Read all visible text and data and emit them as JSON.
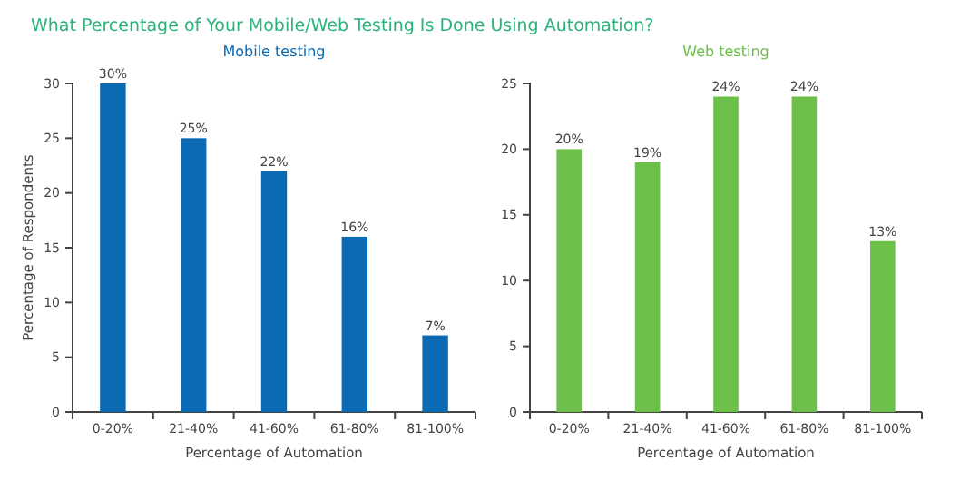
{
  "chart_data": [
    {
      "type": "bar",
      "title": "What Percentage of Your Mobile/Web Testing Is Done Using Automation?",
      "subtitle": "Mobile testing",
      "xlabel": "Percentage of Automation",
      "ylabel": "Percentage of Respondents",
      "categories": [
        "0-20%",
        "21-40%",
        "41-60%",
        "61-80%",
        "81-100%"
      ],
      "values": [
        30,
        25,
        22,
        16,
        7
      ],
      "value_labels": [
        "30%",
        "25%",
        "22%",
        "16%",
        "7%"
      ],
      "color": "#0a6ab4",
      "ylim": [
        0,
        30
      ],
      "yticks": [
        0,
        5,
        10,
        15,
        20,
        25,
        30
      ],
      "grid": false
    },
    {
      "type": "bar",
      "subtitle": "Web testing",
      "xlabel": "Percentage of Automation",
      "categories": [
        "0-20%",
        "21-40%",
        "41-60%",
        "61-80%",
        "81-100%"
      ],
      "values": [
        20,
        19,
        24,
        24,
        13
      ],
      "value_labels": [
        "20%",
        "19%",
        "24%",
        "24%",
        "13%"
      ],
      "color": "#6cc04a",
      "ylim": [
        0,
        25
      ],
      "yticks": [
        0,
        5,
        10,
        15,
        20,
        25
      ],
      "grid": false
    }
  ]
}
